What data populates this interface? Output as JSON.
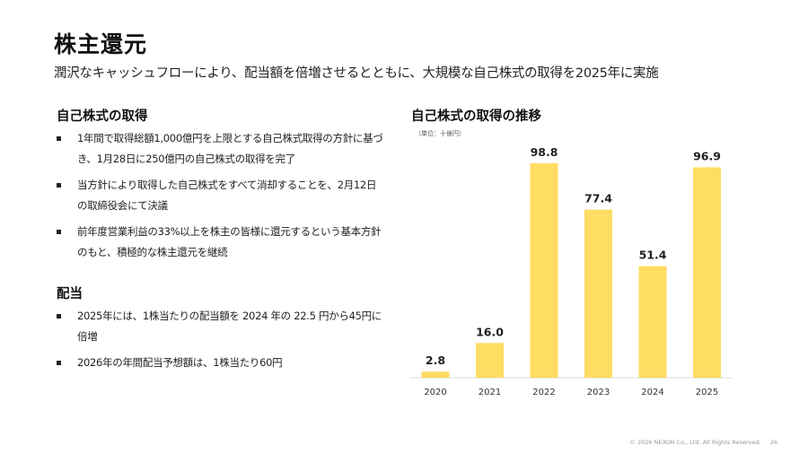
{
  "header": {
    "title": "株主還元",
    "subtitle": "潤沢なキャッシュフローにより、配当額を倍増させるとともに、大規模な自己株式の取得を2025年に実施"
  },
  "buyback": {
    "heading": "自己株式の取得",
    "items": [
      "1年間で取得総額1,000億円を上限とする自己株式取得の方針に基づき、1月28日に250億円の自己株式の取得を完了",
      "当方針により取得した自己株式をすべて消却することを、2月12日の取締役会にて決議",
      "前年度営業利益の33%以上を株主の皆様に還元するという基本方針のもと、積極的な株主還元を継続"
    ]
  },
  "dividend": {
    "heading": "配当",
    "items": [
      "2025年には、1株当たりの配当額を 2024 年の 22.5 円から45円に倍増",
      "2026年の年間配当予想額は、1株当たり60円"
    ]
  },
  "chart_section": {
    "heading": "自己株式の取得の推移",
    "unit": "（単位：十億円）"
  },
  "chart_data": {
    "type": "bar",
    "title": "自己株式の取得の推移",
    "categories": [
      "2020",
      "2021",
      "2022",
      "2023",
      "2024",
      "2025"
    ],
    "values": [
      2.8,
      16.0,
      98.8,
      77.4,
      51.4,
      96.9
    ],
    "value_labels": [
      "2.8",
      "16.0",
      "98.8",
      "77.4",
      "51.4",
      "96.9"
    ],
    "ylim": [
      0,
      100
    ],
    "grid": false,
    "bar_color": "#FFDC62"
  },
  "footer": {
    "copyright": "© 2026 NEXON Co., Ltd. All Rights Reserved.",
    "page": "26"
  }
}
